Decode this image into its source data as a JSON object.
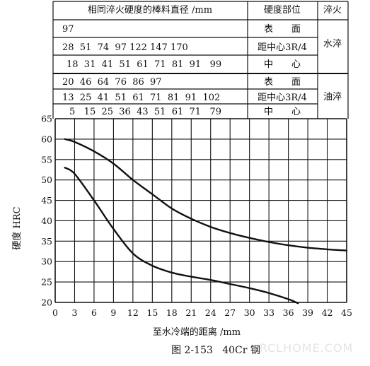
{
  "table": {
    "header": {
      "diam": "相同淬火硬度的棒料直径 /mm",
      "pos": "硬度部位",
      "quench": "淬火"
    },
    "rows": [
      {
        "values": "97",
        "pos": "表　　面"
      },
      {
        "values": "28  51  74  97 122 147 170",
        "pos": "距中心3R/4"
      },
      {
        "values": "18  31  41  51  61  71  81  91   99",
        "pos": "中　　心"
      },
      {
        "values": "20  46  64  76  86  97",
        "pos": "表　　面"
      },
      {
        "values": "13  25  41  51  61  71  81  91  102",
        "pos": "距中心3R/4"
      },
      {
        "values": "5   15  25  36  43  51  61  71   79",
        "pos": "中　　心"
      }
    ],
    "groups": [
      "水淬",
      "油淬"
    ]
  },
  "chart_data": {
    "type": "line",
    "xlabel": "至水冷端的距离 /mm",
    "ylabel": "硬度 HRC",
    "xlim": [
      0,
      45
    ],
    "ylim": [
      20,
      65
    ],
    "xticks": [
      "0",
      "3",
      "6",
      "9",
      "12",
      "15",
      "18",
      "21",
      "24",
      "27",
      "30",
      "33",
      "36",
      "39",
      "42",
      "45"
    ],
    "yticks": [
      "20",
      "25",
      "30",
      "35",
      "40",
      "45",
      "50",
      "55",
      "60",
      "65"
    ],
    "grid": true,
    "series": [
      {
        "x": [
          1.5,
          3,
          6,
          9,
          12,
          15,
          18,
          21,
          24,
          27,
          30,
          33,
          36,
          39,
          42,
          45
        ],
        "y": [
          60,
          59.3,
          57,
          54,
          50,
          46.5,
          43,
          40.5,
          38.5,
          37,
          35.8,
          34.8,
          34,
          33.4,
          33,
          32.7
        ]
      },
      {
        "x": [
          1.5,
          3,
          6,
          9,
          12,
          15,
          18,
          21,
          24,
          27,
          30,
          33,
          36,
          37.5
        ],
        "y": [
          53,
          51.5,
          45,
          38,
          32,
          29,
          27.3,
          26.3,
          25.5,
          24.5,
          23.5,
          22.3,
          20.8,
          19.8
        ]
      }
    ]
  },
  "caption": "图 2-153   40Cr 钢",
  "watermark": "RCLHOME.COM"
}
